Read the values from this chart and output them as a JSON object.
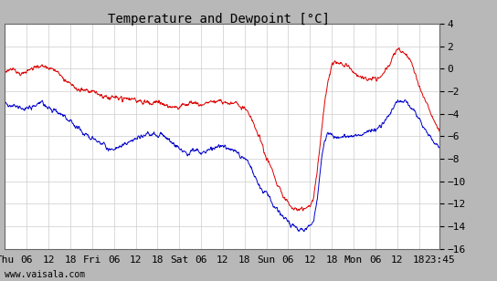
{
  "title": "Temperature and Dewpoint [°C]",
  "ylim": [
    -16,
    4
  ],
  "yticks": [
    4,
    2,
    0,
    -2,
    -4,
    -6,
    -8,
    -10,
    -12,
    -14,
    -16
  ],
  "watermark": "www.vaisala.com",
  "temp_color": "#dd0000",
  "dewpoint_color": "#0000cc",
  "bg_color": "#ffffff",
  "outer_bg": "#b8b8b8",
  "line_width": 0.7,
  "grid_color": "#cccccc",
  "title_fontsize": 10,
  "tick_fontsize": 8,
  "watermark_fontsize": 7,
  "temp_keypoints_t": [
    0,
    2,
    4,
    6,
    8,
    10,
    12,
    14,
    16,
    18,
    20,
    22,
    24,
    26,
    28,
    30,
    32,
    34,
    36,
    38,
    40,
    42,
    44,
    46,
    48,
    50,
    52,
    54,
    56,
    58,
    60,
    62,
    64,
    66,
    68,
    70,
    72,
    74,
    76,
    77,
    78,
    79,
    80,
    81,
    82,
    83,
    84,
    85,
    86,
    87,
    88,
    89,
    90,
    92,
    94,
    96,
    98,
    100,
    102,
    104,
    106,
    108,
    110,
    112,
    114,
    116,
    118,
    119.75
  ],
  "temp_keypoints_v": [
    -0.3,
    -0.1,
    -0.5,
    -0.3,
    0.2,
    0.3,
    0.0,
    -0.2,
    -0.8,
    -1.2,
    -1.8,
    -2.0,
    -2.0,
    -2.3,
    -2.5,
    -2.6,
    -2.5,
    -2.8,
    -2.7,
    -3.0,
    -3.1,
    -3.0,
    -3.2,
    -3.4,
    -3.5,
    -3.2,
    -3.0,
    -3.2,
    -3.0,
    -2.9,
    -2.9,
    -3.0,
    -3.2,
    -3.6,
    -4.5,
    -6.0,
    -8.0,
    -9.5,
    -11.0,
    -11.5,
    -12.0,
    -12.3,
    -12.5,
    -12.5,
    -12.5,
    -12.3,
    -12.2,
    -11.5,
    -9.0,
    -6.0,
    -3.0,
    -1.0,
    0.5,
    0.5,
    0.3,
    -0.3,
    -0.8,
    -1.0,
    -1.0,
    -0.5,
    0.5,
    1.8,
    1.5,
    0.5,
    -1.5,
    -3.0,
    -4.5,
    -5.5
  ],
  "dew_keypoints_t": [
    0,
    2,
    4,
    6,
    8,
    10,
    12,
    14,
    16,
    18,
    20,
    22,
    24,
    26,
    28,
    30,
    32,
    34,
    36,
    38,
    40,
    42,
    44,
    46,
    48,
    50,
    52,
    54,
    56,
    58,
    60,
    62,
    64,
    66,
    68,
    70,
    72,
    74,
    76,
    77,
    78,
    79,
    80,
    81,
    82,
    83,
    84,
    85,
    86,
    87,
    88,
    89,
    90,
    92,
    94,
    96,
    98,
    100,
    102,
    104,
    106,
    108,
    110,
    112,
    114,
    116,
    118,
    119.75
  ],
  "dew_keypoints_v": [
    -3.0,
    -3.2,
    -3.5,
    -3.5,
    -3.2,
    -3.0,
    -3.5,
    -3.8,
    -4.2,
    -4.8,
    -5.2,
    -5.8,
    -6.2,
    -6.5,
    -7.0,
    -7.0,
    -6.8,
    -6.5,
    -6.2,
    -6.0,
    -5.8,
    -5.8,
    -6.0,
    -6.5,
    -7.2,
    -7.5,
    -7.3,
    -7.5,
    -7.2,
    -7.0,
    -7.0,
    -7.2,
    -7.5,
    -8.0,
    -9.0,
    -10.5,
    -11.0,
    -12.0,
    -13.0,
    -13.3,
    -13.5,
    -13.8,
    -14.0,
    -14.2,
    -14.3,
    -14.2,
    -14.0,
    -13.5,
    -11.5,
    -8.5,
    -6.5,
    -5.5,
    -6.0,
    -6.2,
    -6.0,
    -6.0,
    -5.8,
    -5.5,
    -5.5,
    -5.0,
    -4.0,
    -2.8,
    -3.0,
    -3.5,
    -4.5,
    -5.5,
    -6.5,
    -7.0
  ]
}
